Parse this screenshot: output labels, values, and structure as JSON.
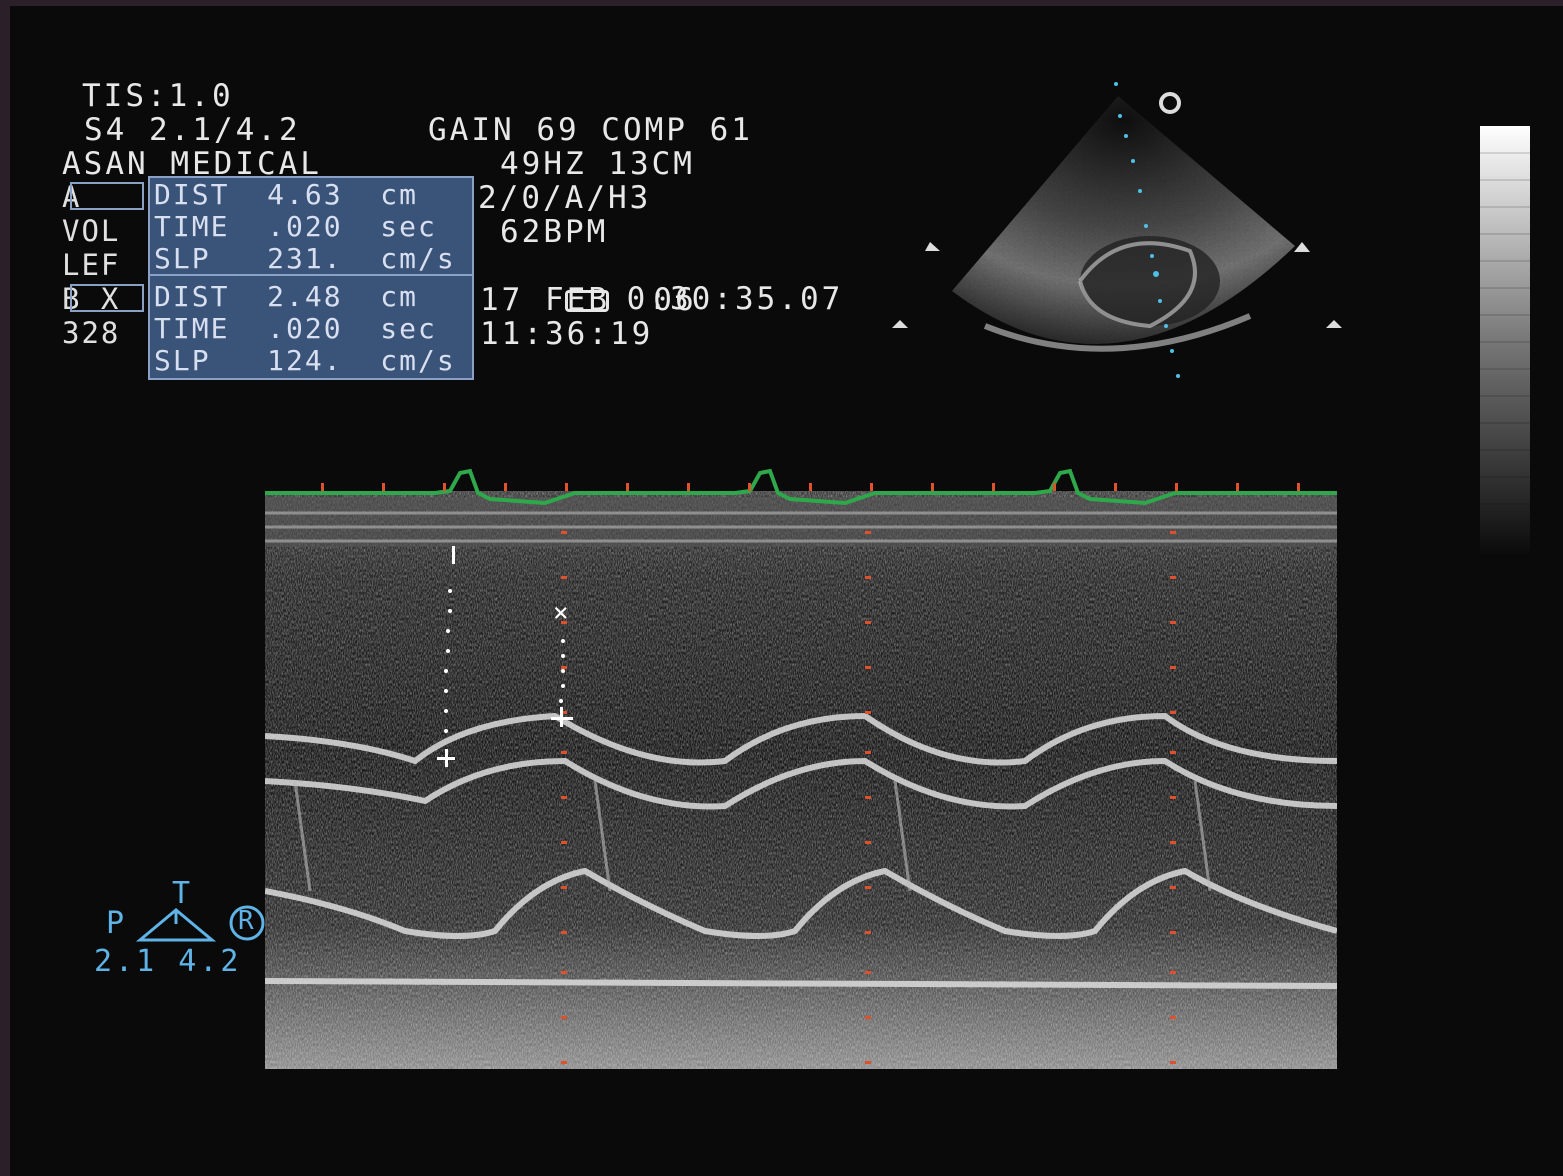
{
  "header": {
    "tis": "TIS:1.0",
    "probe_line": "S4 2.1/4.2",
    "institution": "ASAN MEDICAL",
    "gain_line": "GAIN 69 COMP 61",
    "freq_line": "49HZ 13CM",
    "mode_line": "2/0/A/H3",
    "bpm_line": "62BPM",
    "tape_time": "0:30:35.07",
    "date": "17 FEB  06",
    "time": "11:36:19"
  },
  "left_labels": {
    "row_a": "A",
    "row_vol": "VOL",
    "row_lef": "LEF",
    "row_b": "B X",
    "row_num": "328"
  },
  "measurements": [
    {
      "cursor": "A",
      "dist": "DIST  4.63  cm",
      "time": "TIME  .020  sec",
      "slope": "SLP   231.  cm/s"
    },
    {
      "cursor": "B",
      "dist": "DIST  2.48  cm",
      "time": "TIME  .020  sec",
      "slope": "SLP   124.  cm/s"
    }
  ],
  "sector": {
    "depth_marker": "o"
  },
  "probe_icon": {
    "t_label": "T",
    "p_label": "P",
    "r_label": "R",
    "range": "2.1 4.2"
  },
  "colors": {
    "measurement_box": "#3a5378",
    "ecg_trace": "#2ea84a",
    "cursor_dots": "#4fc0e8",
    "timing_marks": "#e0502a",
    "probe_icon": "#5fb3e6"
  }
}
